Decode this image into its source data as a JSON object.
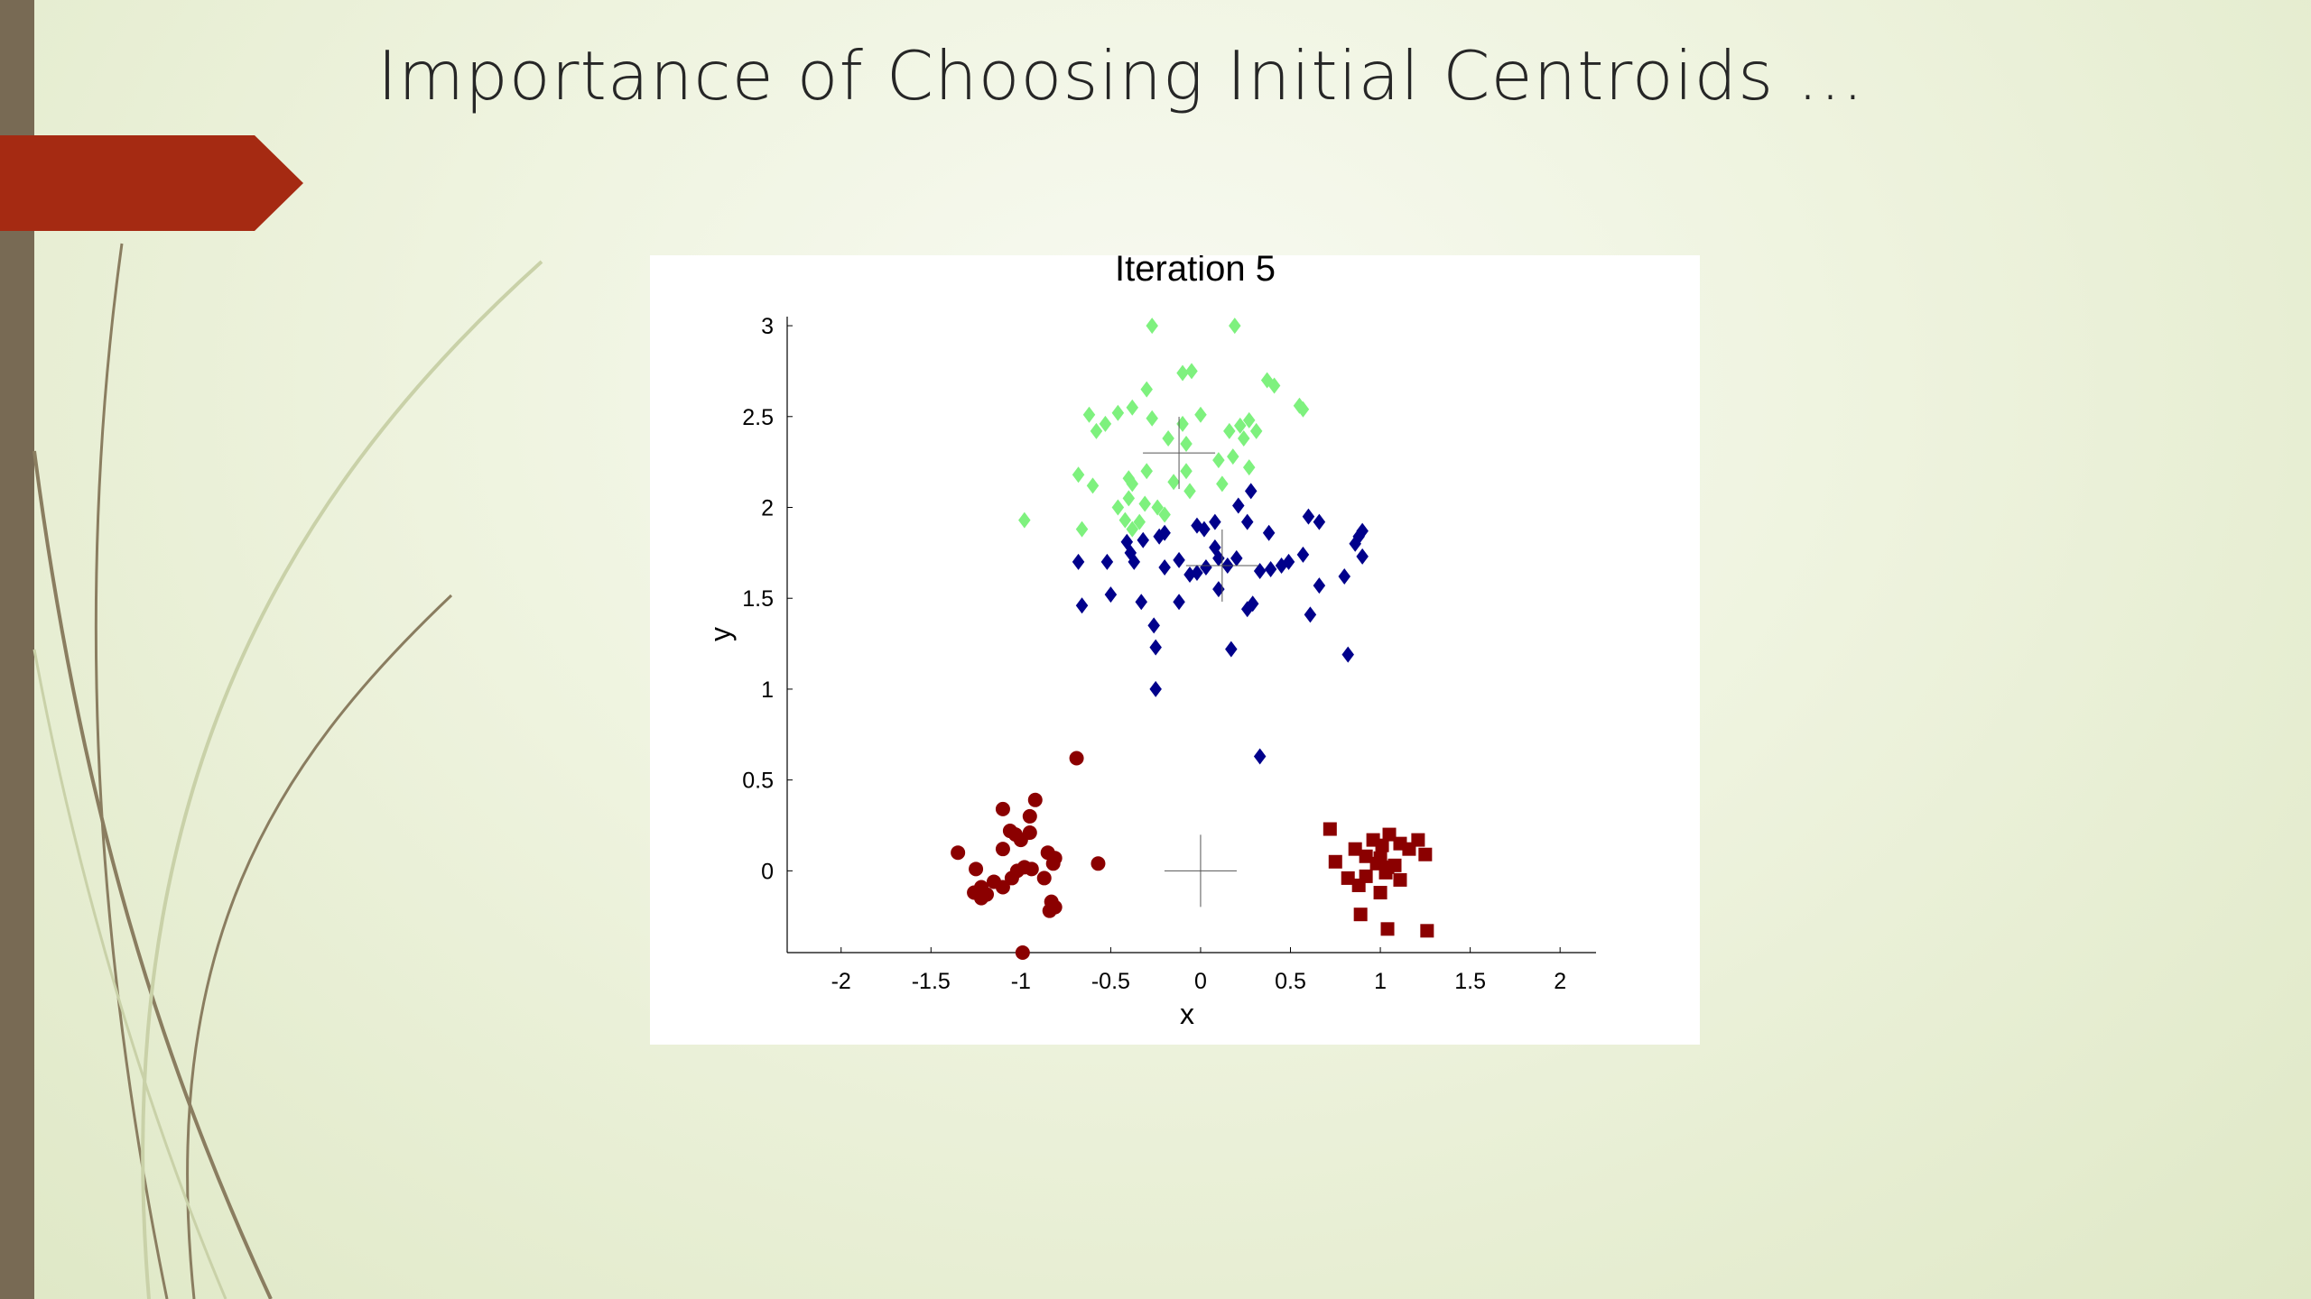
{
  "slide": {
    "title": "Importance of Choosing Initial Centroids …",
    "colors": {
      "left_bar": "#786a54",
      "accent": "#a52a12",
      "background": "#eef3de"
    }
  },
  "chart_data": {
    "type": "scatter",
    "title": "Iteration 5",
    "xlabel": "x",
    "ylabel": "y",
    "xlim": [
      -2.3,
      2.2
    ],
    "ylim": [
      -0.45,
      3.05
    ],
    "xticks": [
      "-2",
      "-1.5",
      "-1",
      "-0.5",
      "0",
      "0.5",
      "1",
      "1.5",
      "2"
    ],
    "yticks": [
      "0",
      "0.5",
      "1",
      "1.5",
      "2",
      "2.5",
      "3"
    ],
    "grid": false,
    "series": [
      {
        "marker": "diamond",
        "color": "#7ef17e",
        "points": [
          [
            -0.27,
            3.0
          ],
          [
            0.19,
            3.0
          ],
          [
            -0.05,
            2.75
          ],
          [
            -0.1,
            2.74
          ],
          [
            0.37,
            2.7
          ],
          [
            0.41,
            2.67
          ],
          [
            -0.3,
            2.65
          ],
          [
            0.55,
            2.56
          ],
          [
            0.57,
            2.54
          ],
          [
            -0.38,
            2.55
          ],
          [
            -0.46,
            2.52
          ],
          [
            -0.62,
            2.51
          ],
          [
            -0.27,
            2.49
          ],
          [
            0.0,
            2.51
          ],
          [
            0.27,
            2.48
          ],
          [
            0.22,
            2.45
          ],
          [
            -0.1,
            2.46
          ],
          [
            0.31,
            2.42
          ],
          [
            -0.53,
            2.46
          ],
          [
            -0.58,
            2.42
          ],
          [
            0.16,
            2.42
          ],
          [
            0.24,
            2.38
          ],
          [
            -0.18,
            2.38
          ],
          [
            -0.08,
            2.35
          ],
          [
            0.1,
            2.26
          ],
          [
            0.18,
            2.28
          ],
          [
            0.27,
            2.22
          ],
          [
            -0.3,
            2.2
          ],
          [
            -0.68,
            2.18
          ],
          [
            -0.38,
            2.13
          ],
          [
            -0.6,
            2.12
          ],
          [
            -0.4,
            2.16
          ],
          [
            -0.08,
            2.2
          ],
          [
            -0.15,
            2.14
          ],
          [
            0.12,
            2.13
          ],
          [
            -0.06,
            2.09
          ],
          [
            -0.31,
            2.02
          ],
          [
            -0.24,
            2.0
          ],
          [
            -0.4,
            2.05
          ],
          [
            -0.46,
            2.0
          ],
          [
            -0.2,
            1.96
          ],
          [
            -0.42,
            1.93
          ],
          [
            -0.34,
            1.92
          ],
          [
            -0.38,
            1.88
          ],
          [
            -0.66,
            1.88
          ],
          [
            -0.98,
            1.93
          ]
        ]
      },
      {
        "marker": "diamond",
        "color": "#00008b",
        "points": [
          [
            0.28,
            2.09
          ],
          [
            0.21,
            2.01
          ],
          [
            0.26,
            1.92
          ],
          [
            0.6,
            1.95
          ],
          [
            0.66,
            1.92
          ],
          [
            0.08,
            1.92
          ],
          [
            -0.02,
            1.9
          ],
          [
            0.02,
            1.88
          ],
          [
            0.9,
            1.87
          ],
          [
            0.88,
            1.84
          ],
          [
            0.38,
            1.86
          ],
          [
            -0.2,
            1.86
          ],
          [
            -0.23,
            1.84
          ],
          [
            -0.32,
            1.82
          ],
          [
            -0.41,
            1.81
          ],
          [
            0.86,
            1.8
          ],
          [
            0.08,
            1.78
          ],
          [
            -0.39,
            1.75
          ],
          [
            0.57,
            1.74
          ],
          [
            0.9,
            1.73
          ],
          [
            0.1,
            1.72
          ],
          [
            0.2,
            1.72
          ],
          [
            -0.12,
            1.71
          ],
          [
            0.49,
            1.7
          ],
          [
            -0.68,
            1.7
          ],
          [
            -0.52,
            1.7
          ],
          [
            0.15,
            1.68
          ],
          [
            0.45,
            1.68
          ],
          [
            0.39,
            1.66
          ],
          [
            -0.37,
            1.7
          ],
          [
            0.03,
            1.67
          ],
          [
            -0.02,
            1.64
          ],
          [
            -0.2,
            1.67
          ],
          [
            0.33,
            1.65
          ],
          [
            -0.06,
            1.63
          ],
          [
            0.8,
            1.62
          ],
          [
            0.66,
            1.57
          ],
          [
            0.1,
            1.55
          ],
          [
            -0.5,
            1.52
          ],
          [
            -0.12,
            1.48
          ],
          [
            -0.33,
            1.48
          ],
          [
            0.29,
            1.47
          ],
          [
            -0.66,
            1.46
          ],
          [
            0.26,
            1.44
          ],
          [
            0.61,
            1.41
          ],
          [
            -0.26,
            1.35
          ],
          [
            -0.25,
            1.23
          ],
          [
            0.17,
            1.22
          ],
          [
            0.82,
            1.19
          ],
          [
            -0.25,
            1.0
          ],
          [
            0.33,
            0.63
          ]
        ]
      },
      {
        "marker": "circle",
        "color": "#8b0000",
        "points": [
          [
            -0.69,
            0.62
          ],
          [
            -0.92,
            0.39
          ],
          [
            -1.1,
            0.34
          ],
          [
            -0.95,
            0.3
          ],
          [
            -1.06,
            0.22
          ],
          [
            -1.03,
            0.2
          ],
          [
            -0.95,
            0.21
          ],
          [
            -1.0,
            0.17
          ],
          [
            -1.35,
            0.1
          ],
          [
            -1.1,
            0.12
          ],
          [
            -0.85,
            0.1
          ],
          [
            -0.81,
            0.07
          ],
          [
            -0.82,
            0.04
          ],
          [
            -0.57,
            0.04
          ],
          [
            -0.98,
            0.02
          ],
          [
            -0.94,
            0.01
          ],
          [
            -1.02,
            0.0
          ],
          [
            -1.25,
            0.01
          ],
          [
            -1.05,
            -0.04
          ],
          [
            -0.87,
            -0.04
          ],
          [
            -1.15,
            -0.06
          ],
          [
            -1.1,
            -0.09
          ],
          [
            -1.22,
            -0.09
          ],
          [
            -1.26,
            -0.12
          ],
          [
            -1.19,
            -0.13
          ],
          [
            -1.22,
            -0.15
          ],
          [
            -0.83,
            -0.17
          ],
          [
            -0.81,
            -0.2
          ],
          [
            -0.84,
            -0.22
          ],
          [
            -0.99,
            -0.45
          ]
        ]
      },
      {
        "marker": "square",
        "color": "#8b0000",
        "points": [
          [
            0.72,
            0.23
          ],
          [
            1.05,
            0.2
          ],
          [
            0.96,
            0.17
          ],
          [
            1.21,
            0.17
          ],
          [
            1.11,
            0.15
          ],
          [
            1.01,
            0.14
          ],
          [
            0.86,
            0.12
          ],
          [
            1.16,
            0.12
          ],
          [
            1.25,
            0.09
          ],
          [
            0.92,
            0.08
          ],
          [
            1.0,
            0.07
          ],
          [
            0.75,
            0.05
          ],
          [
            0.98,
            0.04
          ],
          [
            1.08,
            0.03
          ],
          [
            1.04,
            0.02
          ],
          [
            1.03,
            -0.01
          ],
          [
            0.82,
            -0.04
          ],
          [
            0.92,
            -0.03
          ],
          [
            1.11,
            -0.05
          ],
          [
            0.88,
            -0.08
          ],
          [
            1.0,
            -0.12
          ],
          [
            0.89,
            -0.24
          ],
          [
            1.04,
            -0.32
          ],
          [
            1.26,
            -0.33
          ]
        ]
      }
    ],
    "centroids": [
      [
        -0.12,
        2.3
      ],
      [
        0.12,
        1.68
      ],
      [
        0.0,
        0.0
      ]
    ]
  }
}
